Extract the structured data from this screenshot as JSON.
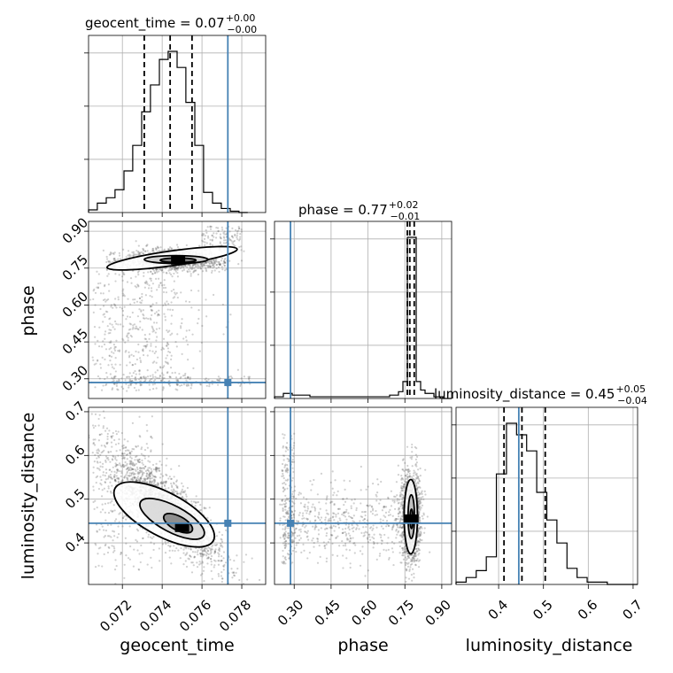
{
  "chart_data": {
    "type": "corner",
    "parameters": [
      "geocent_time",
      "phase",
      "luminosity_distance"
    ],
    "truths": {
      "geocent_time": 0.0773,
      "phase": 0.285,
      "luminosity_distance": 0.445
    },
    "colors": {
      "truth": "#4682b4",
      "hist": "#000000",
      "grid": "#b0b0b0",
      "points": "#555555"
    },
    "grid": true,
    "ranges": {
      "geocent_time": [
        0.0703,
        0.0792
      ],
      "phase": [
        0.22,
        0.94
      ],
      "luminosity_distance": [
        0.305,
        0.71
      ]
    },
    "ticks": {
      "geocent_time": [
        0.072,
        0.074,
        0.076,
        0.078
      ],
      "phase": [
        0.3,
        0.45,
        0.6,
        0.75,
        0.9
      ],
      "luminosity_distance": [
        0.4,
        0.5,
        0.6,
        0.7
      ]
    },
    "tick_labels": {
      "geocent_time": [
        "0.072",
        "0.074",
        "0.076",
        "0.078"
      ],
      "phase": [
        "0.30",
        "0.45",
        "0.60",
        "0.75",
        "0.90"
      ],
      "luminosity_distance": [
        "0.4",
        "0.5",
        "0.6",
        "0.7"
      ]
    },
    "diagonal": [
      {
        "param": "geocent_time",
        "title_main": "geocent_time = 0.07",
        "title_sup": "+0.00",
        "title_sub": "−0.00",
        "quantiles": [
          0.0731,
          0.0744,
          0.0755
        ],
        "bin_edges": [
          0.0703,
          0.07074,
          0.07119,
          0.07163,
          0.07208,
          0.07252,
          0.07297,
          0.07341,
          0.07386,
          0.0743,
          0.07475,
          0.07519,
          0.07564,
          0.07608,
          0.07653,
          0.07697,
          0.07742,
          0.07786,
          0.0783
        ],
        "counts": [
          2,
          7,
          11,
          17,
          31,
          50,
          75,
          95,
          114,
          120,
          108,
          82,
          50,
          15,
          7,
          3,
          1,
          0
        ]
      },
      {
        "param": "phase",
        "title_main": "phase = 0.77",
        "title_sup": "+0.02",
        "title_sub": "−0.01",
        "quantiles": [
          0.76,
          0.77,
          0.788
        ],
        "bin_edges": [
          0.22,
          0.256,
          0.292,
          0.328,
          0.364,
          0.4,
          0.436,
          0.472,
          0.508,
          0.544,
          0.58,
          0.616,
          0.652,
          0.688,
          0.724,
          0.742,
          0.76,
          0.778,
          0.796,
          0.814,
          0.832,
          0.868,
          0.904,
          0.94
        ],
        "counts": [
          1,
          3,
          2,
          2,
          1,
          1,
          1,
          1,
          1,
          1,
          1,
          1,
          1,
          2,
          4,
          10,
          95,
          95,
          10,
          5,
          3,
          1,
          0
        ]
      },
      {
        "param": "luminosity_distance",
        "title_main": "luminosity_distance = 0.45",
        "title_sup": "+0.05",
        "title_sub": "−0.04",
        "quantiles": [
          0.412,
          0.452,
          0.504
        ],
        "bin_edges": [
          0.305,
          0.3275,
          0.35,
          0.3725,
          0.395,
          0.4175,
          0.44,
          0.4625,
          0.485,
          0.5075,
          0.53,
          0.5525,
          0.575,
          0.5975,
          0.62,
          0.6425,
          0.665,
          0.6875,
          0.71
        ],
        "counts": [
          1,
          3,
          6,
          12,
          48,
          70,
          65,
          58,
          40,
          28,
          18,
          7,
          3,
          1,
          1,
          0,
          0,
          0
        ]
      }
    ],
    "pairs": [
      {
        "x": "geocent_time",
        "y": "phase"
      },
      {
        "x": "geocent_time",
        "y": "luminosity_distance"
      },
      {
        "x": "phase",
        "y": "luminosity_distance"
      }
    ]
  }
}
